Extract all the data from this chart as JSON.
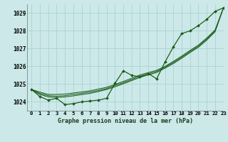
{
  "title": "Graphe pression niveau de la mer (hPa)",
  "bg_color": "#cce8e8",
  "grid_color": "#aad4d4",
  "line_color": "#1a5c1a",
  "xlim": [
    -0.5,
    23
  ],
  "ylim": [
    1023.5,
    1029.5
  ],
  "yticks": [
    1024,
    1025,
    1026,
    1027,
    1028,
    1029
  ],
  "xtick_labels": [
    "0",
    "1",
    "2",
    "3",
    "4",
    "5",
    "6",
    "7",
    "8",
    "9",
    "10",
    "11",
    "12",
    "13",
    "14",
    "15",
    "16",
    "17",
    "18",
    "19",
    "20",
    "21",
    "22",
    "23"
  ],
  "main_series": [
    1024.7,
    1024.3,
    1024.1,
    1024.2,
    1023.85,
    1023.9,
    1024.0,
    1024.05,
    1024.1,
    1024.2,
    1025.05,
    1025.75,
    1025.5,
    1025.4,
    1025.6,
    1025.3,
    1026.25,
    1027.1,
    1027.85,
    1028.0,
    1028.3,
    1028.65,
    1029.1,
    1029.3
  ],
  "smooth_line1": [
    1024.7,
    1024.55,
    1024.42,
    1024.42,
    1024.44,
    1024.5,
    1024.56,
    1024.62,
    1024.72,
    1024.82,
    1024.98,
    1025.15,
    1025.33,
    1025.52,
    1025.65,
    1025.78,
    1026.0,
    1026.28,
    1026.58,
    1026.9,
    1027.2,
    1027.6,
    1028.05,
    1029.3
  ],
  "smooth_line2": [
    1024.7,
    1024.48,
    1024.35,
    1024.32,
    1024.35,
    1024.42,
    1024.48,
    1024.55,
    1024.64,
    1024.75,
    1024.92,
    1025.08,
    1025.26,
    1025.45,
    1025.58,
    1025.72,
    1025.95,
    1026.22,
    1026.52,
    1026.84,
    1027.14,
    1027.54,
    1028.0,
    1029.3
  ],
  "smooth_line3": [
    1024.7,
    1024.42,
    1024.28,
    1024.25,
    1024.28,
    1024.34,
    1024.41,
    1024.48,
    1024.58,
    1024.7,
    1024.85,
    1025.02,
    1025.2,
    1025.38,
    1025.52,
    1025.66,
    1025.9,
    1026.16,
    1026.46,
    1026.78,
    1027.08,
    1027.48,
    1027.95,
    1029.3
  ]
}
